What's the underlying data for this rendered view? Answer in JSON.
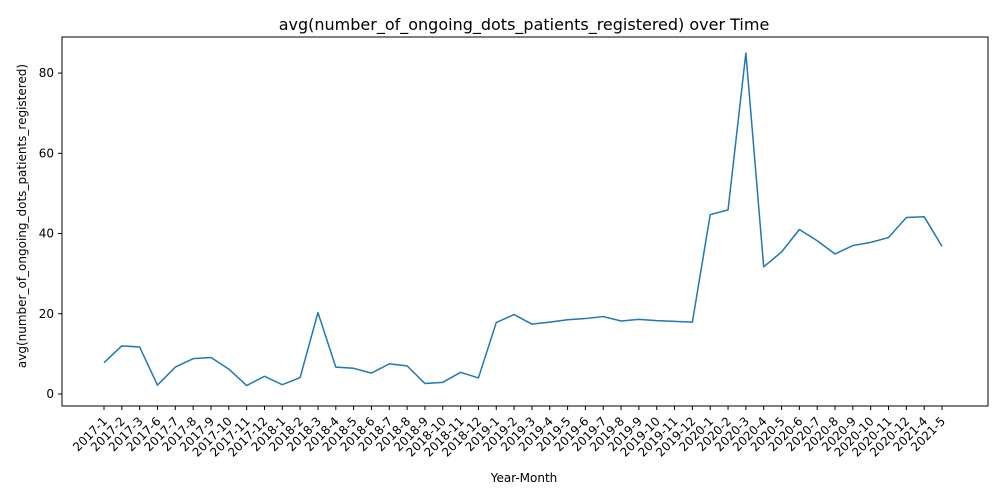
{
  "chart_data": {
    "type": "line",
    "title": "avg(number_of_ongoing_dots_patients_registered) over Time",
    "xlabel": "Year-Month",
    "ylabel": "avg(number_of_ongoing_dots_patients_registered)",
    "ylim": [
      -3,
      89
    ],
    "yticks": [
      0,
      20,
      40,
      60,
      80
    ],
    "grid": false,
    "legend": "none",
    "line_color": "#1f77b4",
    "categories": [
      "2017-1",
      "2017-2",
      "2017-3",
      "2017-6",
      "2017-7",
      "2017-8",
      "2017-9",
      "2017-10",
      "2017-11",
      "2017-12",
      "2018-1",
      "2018-2",
      "2018-3",
      "2018-4",
      "2018-5",
      "2018-6",
      "2018-7",
      "2018-8",
      "2018-9",
      "2018-10",
      "2018-11",
      "2018-12",
      "2019-1",
      "2019-2",
      "2019-3",
      "2019-4",
      "2019-5",
      "2019-6",
      "2019-7",
      "2019-8",
      "2019-9",
      "2019-10",
      "2019-11",
      "2019-12",
      "2020-1",
      "2020-2",
      "2020-3",
      "2020-4",
      "2020-5",
      "2020-6",
      "2020-7",
      "2020-8",
      "2020-9",
      "2020-10",
      "2020-11",
      "2020-12",
      "2021-4",
      "2021-5"
    ],
    "series": [
      {
        "values": [
          7.8,
          12.0,
          11.7,
          2.2,
          6.7,
          8.8,
          9.1,
          6.2,
          2.1,
          4.4,
          2.3,
          4.1,
          20.3,
          6.7,
          6.4,
          5.2,
          7.5,
          7.0,
          2.6,
          2.9,
          5.4,
          4.0,
          17.8,
          19.8,
          17.4,
          17.9,
          18.5,
          18.8,
          19.3,
          18.2,
          18.6,
          18.3,
          18.1,
          17.9,
          44.7,
          45.9,
          85.0,
          31.7,
          35.4,
          41.0,
          38.2,
          34.9,
          37.0,
          37.8,
          39.0,
          44.0,
          44.2,
          36.8
        ]
      }
    ]
  }
}
